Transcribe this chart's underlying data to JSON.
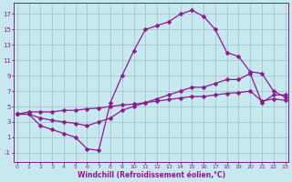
{
  "bg_color": "#c8e8f0",
  "grid_color": "#9fbfc8",
  "line_color": "#8b1a8b",
  "markersize": 2.5,
  "linewidth": 0.9,
  "xlabel": "Windchill (Refroidissement éolien,°C)",
  "xlabel_fontsize": 5.5,
  "xtick_labels": [
    "0",
    "1",
    "2",
    "3",
    "4",
    "5",
    "6",
    "7",
    "8",
    "9",
    "10",
    "11",
    "12",
    "13",
    "14",
    "15",
    "16",
    "17",
    "18",
    "19",
    "20",
    "21",
    "22",
    "23"
  ],
  "ytick_labels": [
    "-1",
    "1",
    "3",
    "5",
    "7",
    "9",
    "11",
    "13",
    "15",
    "17"
  ],
  "ytick_vals": [
    -1,
    1,
    3,
    5,
    7,
    9,
    11,
    13,
    15,
    17
  ],
  "xlim": [
    -0.3,
    23.3
  ],
  "ylim": [
    -2.2,
    18.5
  ],
  "line1_x": [
    0,
    1,
    2,
    3,
    4,
    5,
    6,
    7,
    8,
    9,
    10,
    11,
    12,
    13,
    14,
    15,
    16,
    17,
    18,
    19,
    20,
    21,
    22,
    23
  ],
  "line1_y": [
    4.0,
    4.0,
    2.5,
    2.0,
    1.5,
    1.0,
    -0.5,
    -0.7,
    5.5,
    9.0,
    12.2,
    15.0,
    15.5,
    16.0,
    17.0,
    17.5,
    16.7,
    15.0,
    12.0,
    11.5,
    9.5,
    9.3,
    7.0,
    6.2
  ],
  "line2_x": [
    0,
    1,
    2,
    3,
    4,
    5,
    6,
    7,
    8,
    9,
    10,
    11,
    12,
    13,
    14,
    15,
    16,
    17,
    18,
    19,
    20,
    21,
    22,
    23
  ],
  "line2_y": [
    4.0,
    4.0,
    3.5,
    3.2,
    3.0,
    2.8,
    2.5,
    3.0,
    3.5,
    4.5,
    5.0,
    5.5,
    6.0,
    6.5,
    7.0,
    7.5,
    7.5,
    8.0,
    8.5,
    8.5,
    9.3,
    5.5,
    6.5,
    6.5
  ],
  "line3_x": [
    0,
    1,
    2,
    3,
    4,
    5,
    6,
    7,
    8,
    9,
    10,
    11,
    12,
    13,
    14,
    15,
    16,
    17,
    18,
    19,
    20,
    21,
    22,
    23
  ],
  "line3_y": [
    4.0,
    4.3,
    4.3,
    4.3,
    4.5,
    4.5,
    4.7,
    4.8,
    5.0,
    5.2,
    5.3,
    5.5,
    5.7,
    5.9,
    6.1,
    6.3,
    6.3,
    6.5,
    6.7,
    6.8,
    7.0,
    5.7,
    6.0,
    5.8
  ]
}
